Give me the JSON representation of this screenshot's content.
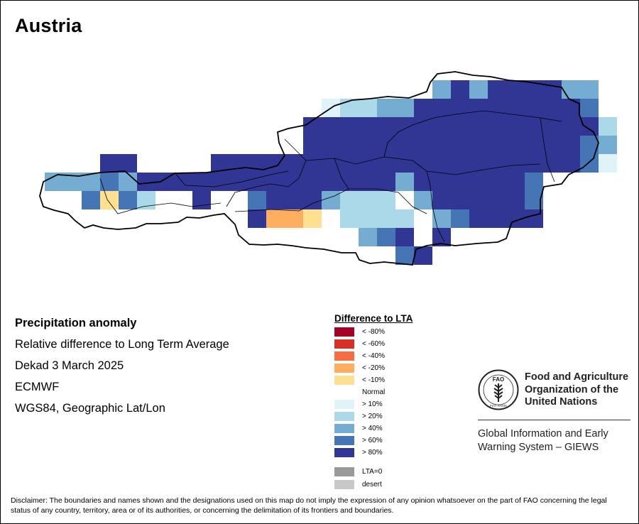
{
  "title": "Austria",
  "info": {
    "heading": "Precipitation anomaly",
    "lines": [
      "Relative difference to Long Term Average",
      "Dekad 3 March 2025",
      "ECMWF",
      "WGS84, Geographic Lat/Lon"
    ]
  },
  "legend": {
    "title": "Difference to LTA",
    "items": [
      {
        "label": "< -80%",
        "color": "#a50026"
      },
      {
        "label": "< -60%",
        "color": "#d73027"
      },
      {
        "label": "< -40%",
        "color": "#f46d43"
      },
      {
        "label": "< -20%",
        "color": "#fdae61"
      },
      {
        "label": "< -10%",
        "color": "#fee090"
      },
      {
        "label": "Normal",
        "color": "#ffffff"
      },
      {
        "label": "> 10%",
        "color": "#e0f3f8"
      },
      {
        "label": "> 20%",
        "color": "#abd9e9"
      },
      {
        "label": "> 40%",
        "color": "#74add1"
      },
      {
        "label": "> 60%",
        "color": "#4575b4"
      },
      {
        "label": "> 80%",
        "color": "#313695"
      }
    ],
    "extra": [
      {
        "label": "LTA=0",
        "color": "#999999"
      },
      {
        "label": "desert",
        "color": "#c8c8c8"
      }
    ]
  },
  "organization": {
    "emblem": "fao-emblem-icon",
    "emblem_text": "FAO",
    "emblem_motto": "FIAT PANIS",
    "name_lines": [
      "Food and Agriculture",
      "Organization of the",
      "United Nations"
    ],
    "program_lines": [
      "Global Information and Early",
      "Warning System – GIEWS"
    ]
  },
  "disclaimer": "Disclaimer: The boundaries and names shown and the designations used on this map do not imply the expression of any opinion whatsoever on the part of FAO concerning the legal status of any country, territory, area or of its authorities, or concerning the delimitation of its frontiers and boundaries.",
  "map": {
    "country": "Austria",
    "grid_classes": [
      "> 80%",
      "> 60%",
      "> 40%",
      "> 20%",
      "> 10%",
      "Normal",
      "< -10%",
      "< -20%"
    ]
  }
}
